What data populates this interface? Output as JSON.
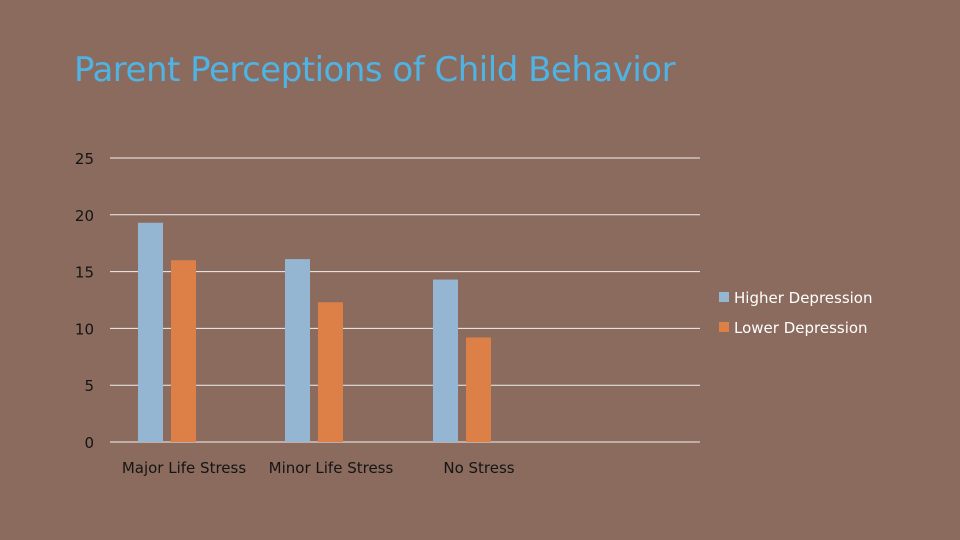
{
  "colors": {
    "background": "#8b6b5e",
    "title": "#4fb3e3",
    "text": "#ffffff",
    "axis_text": "#141414",
    "gridline": "#f0f0f0"
  },
  "chart_data": {
    "type": "bar",
    "title": "Parent Perceptions of Child Behavior",
    "xlabel": "",
    "ylabel": "",
    "ylim": [
      0,
      25
    ],
    "yticks": [
      0,
      5,
      10,
      15,
      20,
      25
    ],
    "grid": true,
    "legend_position": "right",
    "categories": [
      "Major Life Stress",
      "Minor Life Stress",
      "No Stress"
    ],
    "series": [
      {
        "name": "Higher Depression",
        "color": "#94b6d2",
        "values": [
          19.3,
          16.1,
          14.3
        ]
      },
      {
        "name": "Lower Depression",
        "color": "#dd8047",
        "values": [
          16.0,
          12.3,
          9.2
        ]
      }
    ]
  }
}
